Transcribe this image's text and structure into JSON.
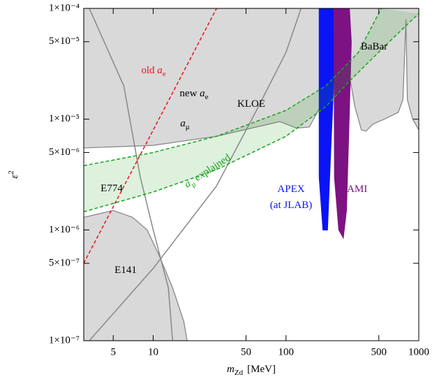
{
  "chart_data": {
    "type": "line",
    "x_label": {
      "symbol": "m",
      "sub": "Zd",
      "unit": "[MeV]"
    },
    "y_label": {
      "symbol": "ε",
      "sup": "2"
    },
    "x_scale": "log",
    "y_scale": "log",
    "xlim": [
      3,
      1000
    ],
    "ylim": [
      1e-07,
      0.0001
    ],
    "xticks": [
      5,
      10,
      50,
      100,
      500,
      1000
    ],
    "yticks": [
      {
        "value": 0.0001,
        "label": "1×10⁻⁴"
      },
      {
        "value": 5e-05,
        "label": "5×10⁻⁵"
      },
      {
        "value": 1e-05,
        "label": "1×10⁻⁵"
      },
      {
        "value": 5e-06,
        "label": "5×10⁻⁶"
      },
      {
        "value": 1e-06,
        "label": "1×10⁻⁶"
      },
      {
        "value": 5e-07,
        "label": "5×10⁻⁷"
      },
      {
        "value": 1e-07,
        "label": "1×10⁻⁷"
      }
    ],
    "series": [
      {
        "style": "area",
        "color": "#d9d9d9",
        "stroke": "#888888",
        "x": [
          3,
          3,
          10,
          30,
          60,
          90,
          120,
          150,
          175,
          300,
          330,
          370,
          400,
          450,
          550,
          700,
          760,
          800,
          820,
          900,
          1000,
          1000
        ],
        "values": [
          0.0001,
          5.5e-06,
          5.8e-06,
          7e-06,
          8.5e-06,
          9.5e-06,
          8.3e-06,
          8.5e-06,
          1.2e-05,
          2.5e-05,
          1.3e-05,
          8e-06,
          7.8e-06,
          9e-06,
          1e-05,
          1.15e-05,
          1.5e-05,
          8e-05,
          1.5e-05,
          1e-05,
          8e-06,
          0.0001
        ]
      },
      {
        "style": "area",
        "color": "#d9d9d9",
        "stroke": "#888888",
        "x": [
          3,
          3,
          5,
          7,
          9,
          11,
          14,
          17,
          18
        ],
        "values": [
          1e-07,
          1.3e-06,
          1.5e-06,
          1.3e-06,
          1e-06,
          6e-07,
          3e-07,
          1.5e-07,
          1e-07
        ]
      },
      {
        "style": "line",
        "color": "#888888",
        "x": [
          3.3,
          6,
          8,
          10,
          13,
          14
        ],
        "values": [
          0.0001,
          2e-05,
          3e-06,
          1e-06,
          3e-07,
          1e-07
        ]
      },
      {
        "style": "line",
        "color": "#888888",
        "x": [
          3.3,
          10,
          30,
          60,
          100,
          130
        ],
        "values": [
          1e-07,
          4.5e-07,
          2.5e-06,
          1.2e-05,
          4e-05,
          0.0001
        ]
      },
      {
        "style": "band-upper",
        "color": "#1aa31a",
        "x": [
          3,
          10,
          30,
          100,
          200,
          350,
          522
        ],
        "values": [
          3.8e-06,
          5e-06,
          7e-06,
          1.2e-05,
          2e-05,
          4e-05,
          0.0001
        ]
      },
      {
        "style": "band-lower",
        "color": "#1aa31a",
        "x": [
          3,
          10,
          30,
          100,
          200,
          300,
          600,
          1000
        ],
        "values": [
          1.46e-06,
          2.2e-06,
          3.5e-06,
          7e-06,
          1.3e-05,
          2.2e-05,
          5e-05,
          9e-05
        ]
      },
      {
        "style": "dashed",
        "color": "#e8141c",
        "x": [
          3,
          30
        ],
        "values": [
          5e-07,
          0.0001
        ]
      },
      {
        "style": "area",
        "color": "#0a14f5",
        "stroke": "#0a14f5",
        "x": [
          178,
          178,
          190,
          205,
          215,
          228,
          240
        ],
        "values": [
          0.0001,
          3e-06,
          1e-06,
          1e-06,
          4e-06,
          2e-05,
          0.0001
        ]
      },
      {
        "style": "area",
        "color": "#7d1283",
        "stroke": "#7d1283",
        "x": [
          230,
          232,
          250,
          270,
          285,
          300,
          310,
          300
        ],
        "values": [
          0.0001,
          3e-06,
          1e-06,
          8.5e-07,
          1.5e-06,
          1.2e-05,
          5e-05,
          0.0001
        ]
      }
    ],
    "annotations": [
      {
        "text": "old ",
        "symbol": "a",
        "sub": "e",
        "color": "#e8141c"
      },
      {
        "text": "new ",
        "symbol": "a",
        "sub": "e",
        "color": "#000000"
      },
      {
        "text": "",
        "symbol": "a",
        "sub": "μ",
        "color": "#000000"
      },
      {
        "text": "KLOE",
        "color": "#000000"
      },
      {
        "text": "BaBar",
        "color": "#000000"
      },
      {
        "text": "E774",
        "color": "#000000"
      },
      {
        "text": "E141",
        "color": "#000000"
      },
      {
        "text": "APEX",
        "color": "#0a14f5"
      },
      {
        "text": "(at JLAB)",
        "color": "#0a14f5"
      },
      {
        "text": "MAMI",
        "color": "#7d1283"
      },
      {
        "text": " explained",
        "symbol": "a",
        "sub": "μ",
        "color": "#1aa31a"
      }
    ]
  }
}
